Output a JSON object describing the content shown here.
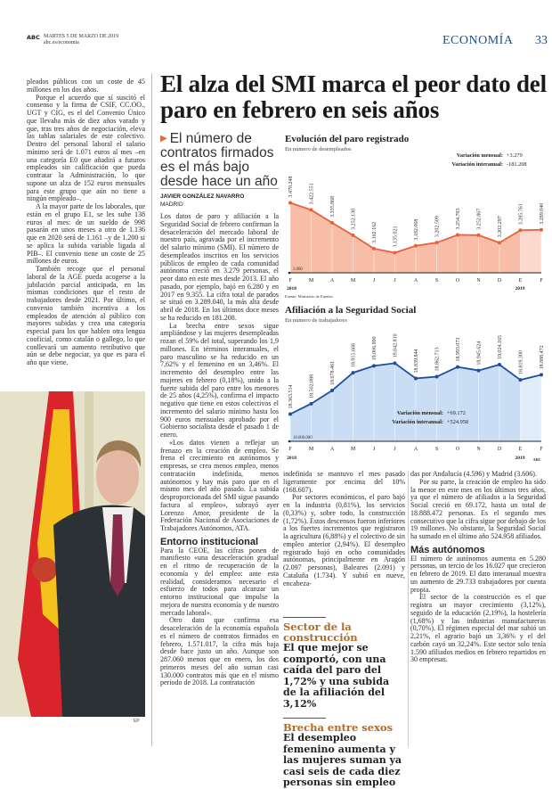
{
  "header": {
    "brand": "ABC",
    "date": "MARTES 5 DE MARZO DE 2019",
    "url": "abc.es/economia",
    "section": "ECONOMÍA",
    "page": "33"
  },
  "left_column": {
    "paragraphs": [
      "pleados públicos con un coste de 45 millones en los dos años.",
      "Porque el acuerdo que sí suscitó el consenso y la firma de CSIF, CC.OO., UGT y CIG, es el del Convenio Único que llevaba más de diez años varado y que, tras tres años de negociación, eleva las tablas salariales de este colectivo. Dentro del personal laboral el salario mínimo será de 1.071 euros al mes –en una categoría E0 que añadirá a futuros empleados sin calificación que pueda contratar la Administración, lo que supone un alza de 152 euros mensuales para este grupo que aún no tiene a ningún empleado–.",
      "A la mayor parte de los laborales, que están en el grupo E1, se les sube 138 euros al mes: de un sueldo de 998 pasarán en unos meses a otro de 1.136 que en 2020 será de 1.161 –y de 1.200 si se aplica la subida variable ligada al PIB–. El convenio tiene un coste de 25 millones de euros.",
      "También recoge que el personal laboral de la AGE pueda acogerse a la jubilación parcial anticipada, en las mismas condiciones que el resto de trabajadores desde 2021. Por último, el convenio también incentiva a los empleados de atención al público con mayores subidas y crea una categoría especial para los que hablen otra lengua cooficial, como catalán o gallego, lo que conllevará un aumento retributivo que aún se debe negociar, ya que es para el año que viene."
    ],
    "photo_credit": "EP"
  },
  "article": {
    "title": "El alza del SMI marca el peor dato del paro en febrero en seis años",
    "subtitle": "El número de contratos firmados es el más bajo desde hace un año",
    "author": "JAVIER GONZÁLEZ NAVARRO",
    "city": "MADRID",
    "col2": [
      "Los datos de paro y afiliación a la Seguridad Social de febrero confirman la desaceleración del mercado laboral de nuestro país, agravada por el incremento del salario mínimo (SMI). El número de desempleados inscritos en los servicios públicos de empleo de cada comunidad autónoma creció en 3.279 personas, el peor dato en este mes desde 2013. El año pasado, por ejemplo, bajó en 6.280 y en 2017 en 9.355. La cifra total de parados se situó en 3.289.040, la más alta desde abril de 2018. En los últimos doce meses se ha reducido en 181.208.",
      "La brecha entre sexos sigue ampliándose y las mujeres desempleadas rozan el 59% del total, superando los 1,9 millones. En términos interanuales, el paro masculino se ha reducido en un 7,62% y el femenino en un 3,46%. El incremento del desempleo entre las mujeres en febrero (0,18%), unido a la fuerte subida del paro entre los menores de 25 años (4,25%), confirma el impacto negativo que tiene en estos colectivos el incremento del salario mínimo hasta los 900 euros mensuales aprobado por el Gobierno socialista desde el pasado 1 de enero.",
      "«Los datos vienen a reflejar un frenazo en la creación de empleo. Se frena el crecimiento en autónomos y empresas, se crea menos empleo, menos contratación indefinida, menos autónomos y hay más paro que en el mismo mes del año pasado. La subida desproporcionada del SMI sigue pasando factura al empleo», subrayó ayer Lorenzo Amor, presidente de la Federación Nacional de Asociaciones de Trabajadores Autónomos, ATA."
    ],
    "heading1": "Entorno institucional",
    "col2b": [
      "Para la CEOE, las cifras ponen de manifiesto «una desaceleración gradual en el ritmo de recuperación de la economía y del empleo: ante esta realidad, consideramos necesario el esfuerzo de todos para alcanzar un entorno institucional que impulse la mejora de nuestra economía y de nuestro mercado laboral».",
      "Otro dato que confirma esa desaceleración de la economía española es el número de contratos firmados en febrero, 1.571.017, la cifra más baja desde hace justo un año. Aunque son 287.060 menos que en enero, los dos primeros meses del año suman casi 130.000 contratos más que en el mismo periodo de 2018. La contratación"
    ],
    "col3": [
      "indefinida se mantuvo el mes pasado ligeramente por encima del 10% (168.607).",
      "Por sectores económicos, el paro bajó en la industria (0,81%), los servicios (0,33%) y, sobre todo, la construcción (1,72%). Estos descensos fueron inferiores a los fuertes incrementos que registraron la agricultura (6,88%) y el colectivo de sin empleo anterior (2,94%). El desempleo registrado bajó en ocho comunidades autónomas, principalmente en Aragón (2.097 personas), Baleares (2.091) y Cataluña (1.734). Y subió en nueve, encabeza-"
    ],
    "highlights": [
      {
        "kicker": "Sector de la construcción",
        "text": "El que mejor se comportó, con una caída del paro del 1,72% y una subida de la afiliación del 3,12%"
      },
      {
        "kicker": "Brecha entre sexos",
        "text": "El desempleo femenino aumenta y las mujeres suman ya casi seis de cada diez personas sin empleo"
      }
    ],
    "col4": [
      "das por Andalucía (4.596) y Madrid (3.606).",
      "Por su parte, la creación de empleo ha sido la menor en este mes en los últimos tres años, ya que el número de afiliados a la Seguridad Social creció en 69.172, hasta un total de 18.888.472 personas. Es el segundo mes consecutivo que la cifra sigue por debajo de los 19 millones. No obstante, la Seguridad Social ha sumado en el último año 524.958 afiliados."
    ],
    "heading2": "Más autónomos",
    "col4b": [
      "El número de autónomos aumenta en 5.280 personas, un tercio de los 16.027 que crecieron en febrero de 2019. El dato interanual muestra un aumento de 29.733 trabajadores por cuenta propia.",
      "El sector de la construcción es el que registra un mayor crecimiento (3,12%), seguido de la educación (2,19%), la hostelería (1,68%) y las industrias manufactureras (0,70%). El régimen especial del mar subió un 2,21%, el agrario bajó un 3,36% y el del carbón cayó un 32,24%. Este sector solo tenía 1.590 afiliados medios en febrero repartidos en 30 empresas."
    ]
  },
  "chart_data": [
    {
      "type": "area",
      "title": "Evolución del paro registrado",
      "subtitle": "En número de desempleados",
      "categories": [
        "F",
        "M",
        "A",
        "M",
        "J",
        "J",
        "A",
        "S",
        "O",
        "N",
        "D",
        "E",
        "F"
      ],
      "year_labels": [
        "2018",
        "2019"
      ],
      "values": [
        3470248,
        3422551,
        3335868,
        3252130,
        3162162,
        3135021,
        3182068,
        3202509,
        3254703,
        3252867,
        3202297,
        3285761,
        3289040
      ],
      "baseline": 3000000,
      "baseline_label": "3.000",
      "notes": [
        {
          "label": "Variación mensual:",
          "value": "+3.279"
        },
        {
          "label": "Variación interanual:",
          "value": "-181.208"
        }
      ],
      "source": "Fuente: Ministerio de Empleo",
      "colors": {
        "line": "#e8603c",
        "fill": "#f7bda6",
        "fill_2019": "#fbd9cc"
      }
    },
    {
      "type": "area",
      "title": "Afiliación a la Seguridad Social",
      "subtitle": "En número de trabajadores",
      "categories": [
        "F",
        "M",
        "A",
        "M",
        "J",
        "J",
        "A",
        "S",
        "O",
        "N",
        "D",
        "E",
        "F"
      ],
      "year_labels": [
        "2018",
        "2019"
      ],
      "values": [
        18363514,
        18502088,
        18678461,
        18915668,
        19006990,
        19042810,
        18839844,
        18862713,
        18993073,
        18945624,
        19024165,
        18819300,
        18888472
      ],
      "baseline": 18000000,
      "baseline_label": "18.000.000",
      "notes": [
        {
          "label": "Variación mensual:",
          "value": "+69.172"
        },
        {
          "label": "Variación interanual:",
          "value": "+524.958"
        }
      ],
      "credit": "ABC",
      "colors": {
        "line": "#1f4e9c",
        "fill": "#c9def5",
        "fill_2019": "#e1edfa"
      }
    }
  ]
}
